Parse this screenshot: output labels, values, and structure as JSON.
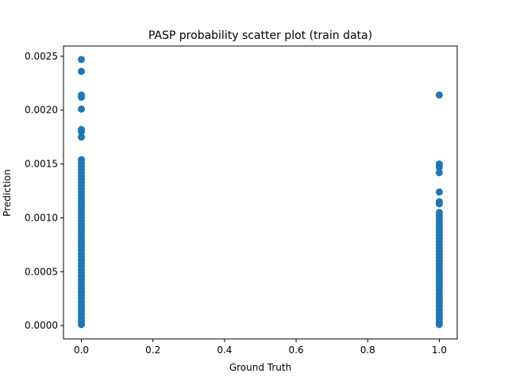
{
  "chart_data": {
    "type": "scatter",
    "title": "PASP probability scatter plot (train data)",
    "xlabel": "Ground Truth",
    "ylabel": "Prediction",
    "xlim": [
      -0.05,
      1.05
    ],
    "ylim": [
      -0.000124,
      0.002595
    ],
    "x_ticks": [
      0.0,
      0.2,
      0.4,
      0.6,
      0.8,
      1.0
    ],
    "x_tick_labels": [
      "0.0",
      "0.2",
      "0.4",
      "0.6",
      "0.8",
      "1.0"
    ],
    "y_ticks": [
      0.0,
      0.0005,
      0.001,
      0.0015,
      0.002,
      0.0025
    ],
    "y_tick_labels": [
      "0.0000",
      "0.0005",
      "0.0010",
      "0.0015",
      "0.0020",
      "0.0025"
    ],
    "grid": false,
    "marker_color": "#1f77b4",
    "series": [
      {
        "points": [
          {
            "x": 0,
            "y": 0.00247
          },
          {
            "x": 0,
            "y": 0.00236
          },
          {
            "x": 0,
            "y": 0.00214
          },
          {
            "x": 0,
            "y": 0.00212
          },
          {
            "x": 0,
            "y": 0.00201
          },
          {
            "x": 0,
            "y": 0.00182
          },
          {
            "x": 0,
            "y": 0.0018
          },
          {
            "x": 0,
            "y": 0.00175
          },
          {
            "x": 0,
            "y": 0.00154
          },
          {
            "x": 0,
            "y": 0.00151
          },
          {
            "x": 0,
            "y": 0.00148
          },
          {
            "x": 0,
            "y": 0.00145
          },
          {
            "x": 0,
            "y": 0.00142
          },
          {
            "x": 0,
            "y": 0.00139
          },
          {
            "x": 0,
            "y": 0.00136
          },
          {
            "x": 0,
            "y": 0.00133
          },
          {
            "x": 0,
            "y": 0.0013
          },
          {
            "x": 0,
            "y": 0.00127
          },
          {
            "x": 0,
            "y": 0.00124
          },
          {
            "x": 0,
            "y": 0.00121
          },
          {
            "x": 0,
            "y": 0.00118
          },
          {
            "x": 0,
            "y": 0.00115
          },
          {
            "x": 0,
            "y": 0.00112
          },
          {
            "x": 0,
            "y": 0.00109
          },
          {
            "x": 0,
            "y": 0.00106
          },
          {
            "x": 0,
            "y": 0.00103
          },
          {
            "x": 0,
            "y": 0.001
          },
          {
            "x": 0,
            "y": 0.00097
          },
          {
            "x": 0,
            "y": 0.00094
          },
          {
            "x": 0,
            "y": 0.00091
          },
          {
            "x": 0,
            "y": 0.00088
          },
          {
            "x": 0,
            "y": 0.00085
          },
          {
            "x": 0,
            "y": 0.00082
          },
          {
            "x": 0,
            "y": 0.00079
          },
          {
            "x": 0,
            "y": 0.00076
          },
          {
            "x": 0,
            "y": 0.00073
          },
          {
            "x": 0,
            "y": 0.0007
          },
          {
            "x": 0,
            "y": 0.00067
          },
          {
            "x": 0,
            "y": 0.00064
          },
          {
            "x": 0,
            "y": 0.00061
          },
          {
            "x": 0,
            "y": 0.00058
          },
          {
            "x": 0,
            "y": 0.00055
          },
          {
            "x": 0,
            "y": 0.00052
          },
          {
            "x": 0,
            "y": 0.00049
          },
          {
            "x": 0,
            "y": 0.00046
          },
          {
            "x": 0,
            "y": 0.00043
          },
          {
            "x": 0,
            "y": 0.0004
          },
          {
            "x": 0,
            "y": 0.00037
          },
          {
            "x": 0,
            "y": 0.00034
          },
          {
            "x": 0,
            "y": 0.00031
          },
          {
            "x": 0,
            "y": 0.00028
          },
          {
            "x": 0,
            "y": 0.00025
          },
          {
            "x": 0,
            "y": 0.00022
          },
          {
            "x": 0,
            "y": 0.00019
          },
          {
            "x": 0,
            "y": 0.00016
          },
          {
            "x": 0,
            "y": 0.00013
          },
          {
            "x": 0,
            "y": 0.0001
          },
          {
            "x": 0,
            "y": 7e-05
          },
          {
            "x": 0,
            "y": 4e-05
          },
          {
            "x": 0,
            "y": 1e-05
          },
          {
            "x": 1,
            "y": 0.00214
          },
          {
            "x": 1,
            "y": 0.0015
          },
          {
            "x": 1,
            "y": 0.00147
          },
          {
            "x": 1,
            "y": 0.00142
          },
          {
            "x": 1,
            "y": 0.00124
          },
          {
            "x": 1,
            "y": 0.00115
          },
          {
            "x": 1,
            "y": 0.00113
          },
          {
            "x": 1,
            "y": 0.00105
          },
          {
            "x": 1,
            "y": 0.00102
          },
          {
            "x": 1,
            "y": 0.00099
          },
          {
            "x": 1,
            "y": 0.00096
          },
          {
            "x": 1,
            "y": 0.00093
          },
          {
            "x": 1,
            "y": 0.0009
          },
          {
            "x": 1,
            "y": 0.00087
          },
          {
            "x": 1,
            "y": 0.00084
          },
          {
            "x": 1,
            "y": 0.00081
          },
          {
            "x": 1,
            "y": 0.00078
          },
          {
            "x": 1,
            "y": 0.00075
          },
          {
            "x": 1,
            "y": 0.00072
          },
          {
            "x": 1,
            "y": 0.00069
          },
          {
            "x": 1,
            "y": 0.00066
          },
          {
            "x": 1,
            "y": 0.00063
          },
          {
            "x": 1,
            "y": 0.0006
          },
          {
            "x": 1,
            "y": 0.00057
          },
          {
            "x": 1,
            "y": 0.00054
          },
          {
            "x": 1,
            "y": 0.00051
          },
          {
            "x": 1,
            "y": 0.00048
          },
          {
            "x": 1,
            "y": 0.00045
          },
          {
            "x": 1,
            "y": 0.00042
          },
          {
            "x": 1,
            "y": 0.00039
          },
          {
            "x": 1,
            "y": 0.00036
          },
          {
            "x": 1,
            "y": 0.00033
          },
          {
            "x": 1,
            "y": 0.0003
          },
          {
            "x": 1,
            "y": 0.00027
          },
          {
            "x": 1,
            "y": 0.00024
          },
          {
            "x": 1,
            "y": 0.00021
          },
          {
            "x": 1,
            "y": 0.00018
          },
          {
            "x": 1,
            "y": 0.00015
          },
          {
            "x": 1,
            "y": 0.00012
          },
          {
            "x": 1,
            "y": 9e-05
          },
          {
            "x": 1,
            "y": 6e-05
          },
          {
            "x": 1,
            "y": 3e-05
          },
          {
            "x": 1,
            "y": 1e-05
          }
        ]
      }
    ]
  }
}
